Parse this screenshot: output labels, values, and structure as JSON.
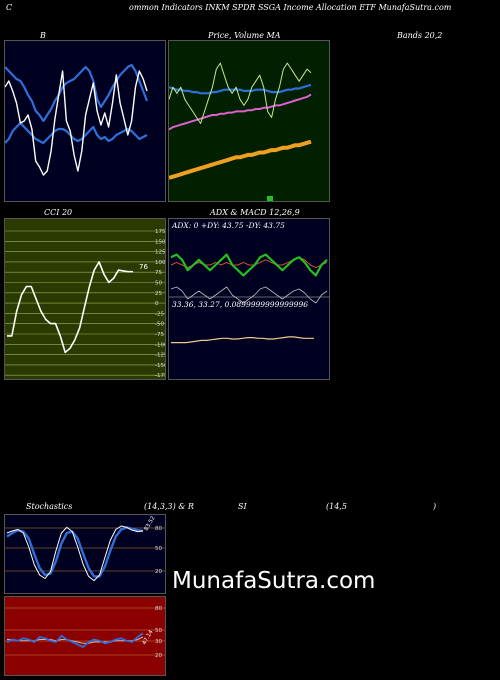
{
  "header": {
    "title": "(Common Indicators INKM SPDR SSGA Income Allocation ETF MunafaSutra.com",
    "c_letter": "C",
    "title_rest": "ommon  Indicators INKM SPDR SSGA Income  Allocation  ETF  MunafaSutra.com"
  },
  "labels": {
    "b": "B",
    "price_ma": "Price,  Volume  MA",
    "bands": "Bands 20,2",
    "cci": "CCI 20",
    "adx_macd": "ADX  & MACD 12,26,9",
    "stochastics": "Stochastics",
    "stoch_params": "(14,3,3) & R",
    "si": "SI",
    "rsi_params": "(14,5",
    "close_paren": ")",
    "watermark": "MunafaSutra.com"
  },
  "colors": {
    "bg": "#000000",
    "panel_dark": "#000020",
    "price_bg": "#002000",
    "cci_bg": "#2b3a00",
    "rsi_bg": "#8b0000",
    "blue": "#2f6fd8",
    "white": "#ffffff",
    "green": "#22c022",
    "orange": "#f0a020",
    "pink": "#e060d0",
    "grid_orange": "#c88a30"
  },
  "chart_data": [
    {
      "type": "line",
      "name": "bollinger-bands",
      "series": [
        {
          "values": [
            62,
            60,
            58,
            56,
            55,
            52,
            48,
            45,
            40,
            38,
            35,
            38,
            41,
            45,
            48,
            52,
            54,
            55,
            56,
            58,
            60,
            62,
            60,
            55,
            46,
            42,
            45,
            48,
            52,
            55,
            58,
            60,
            62,
            63,
            60,
            55,
            50,
            45
          ]
        },
        {
          "values": [
            52,
            55,
            50,
            44,
            34,
            35,
            38,
            31,
            15,
            12,
            8,
            10,
            20,
            36,
            48,
            60,
            35,
            30,
            18,
            10,
            20,
            38,
            46,
            54,
            40,
            33,
            39,
            32,
            44,
            58,
            44,
            36,
            28,
            35,
            52,
            60,
            56,
            50
          ]
        },
        {
          "values": [
            24,
            26,
            30,
            32,
            34,
            32,
            30,
            28,
            26,
            25,
            24,
            26,
            28,
            30,
            31,
            31,
            30,
            28,
            26,
            25,
            26,
            28,
            30,
            32,
            28,
            26,
            27,
            25,
            26,
            28,
            29,
            30,
            31,
            30,
            28,
            26,
            27,
            28
          ]
        }
      ]
    },
    {
      "type": "line",
      "name": "price-volume-ma",
      "series": [
        {
          "values": [
            11.2,
            11.3,
            11.25,
            11.3,
            11.2,
            11.15,
            11.1,
            11.05,
            11.0,
            11.1,
            11.2,
            11.3,
            11.45,
            11.5,
            11.4,
            11.3,
            11.25,
            11.3,
            11.2,
            11.15,
            11.2,
            11.3,
            11.35,
            11.4,
            11.3,
            11.1,
            11.05,
            11.2,
            11.3,
            11.45,
            11.5,
            11.45,
            11.4,
            11.35,
            11.4,
            11.45,
            11.42
          ]
        },
        {
          "values": [
            11.3,
            11.29,
            11.28,
            11.28,
            11.27,
            11.27,
            11.26,
            11.26,
            11.25,
            11.25,
            11.25,
            11.26,
            11.26,
            11.27,
            11.28,
            11.28,
            11.28,
            11.28,
            11.28,
            11.27,
            11.27,
            11.27,
            11.28,
            11.28,
            11.28,
            11.27,
            11.26,
            11.26,
            11.26,
            11.27,
            11.28,
            11.28,
            11.29,
            11.29,
            11.3,
            11.31,
            11.32
          ]
        },
        {
          "values": [
            10.95,
            10.97,
            10.98,
            10.99,
            11.0,
            11.01,
            11.02,
            11.03,
            11.04,
            11.05,
            11.06,
            11.07,
            11.07,
            11.08,
            11.08,
            11.09,
            11.09,
            11.1,
            11.1,
            11.1,
            11.11,
            11.11,
            11.12,
            11.12,
            11.13,
            11.13,
            11.14,
            11.15,
            11.15,
            11.16,
            11.17,
            11.18,
            11.19,
            11.2,
            11.21,
            11.22,
            11.24
          ]
        },
        {
          "values": [
            10.55,
            10.56,
            10.57,
            10.58,
            10.59,
            10.6,
            10.61,
            10.62,
            10.63,
            10.64,
            10.65,
            10.66,
            10.67,
            10.68,
            10.69,
            10.7,
            10.71,
            10.72,
            10.72,
            10.73,
            10.74,
            10.74,
            10.75,
            10.76,
            10.76,
            10.77,
            10.78,
            10.78,
            10.79,
            10.8,
            10.8,
            10.81,
            10.82,
            10.82,
            10.83,
            10.84,
            10.85
          ]
        }
      ]
    },
    {
      "type": "line",
      "name": "cci",
      "ylim": [
        -175,
        175
      ],
      "yticks": [
        "175",
        "150",
        "125",
        "100",
        "75",
        "50",
        "25",
        "0",
        "-25",
        "-50",
        "-75",
        "-100",
        "-125",
        "-150",
        "-175"
      ],
      "last_value": "76",
      "series": [
        {
          "values": [
            -80,
            -80,
            -20,
            20,
            40,
            40,
            10,
            -20,
            -40,
            -50,
            -50,
            -80,
            -120,
            -110,
            -90,
            -60,
            -10,
            40,
            80,
            100,
            70,
            50,
            60,
            80,
            78,
            76,
            76
          ]
        }
      ]
    },
    {
      "type": "line",
      "name": "adx-macd",
      "adx_text": "ADX: 0   +DY: 43.75  -DY: 43.75",
      "macd_text": "33.36,  33.27,  0.0899999999999996",
      "series": [
        {
          "values": [
            43,
            44,
            42,
            38,
            40,
            42,
            40,
            38,
            40,
            42,
            44,
            40,
            38,
            36,
            38,
            40,
            43,
            44,
            42,
            40,
            38,
            40,
            42,
            43,
            41,
            38,
            36,
            40,
            42
          ]
        },
        {
          "values": [
            40,
            41,
            40,
            39,
            40,
            41,
            40,
            40,
            41,
            40,
            41,
            40,
            40,
            41,
            40,
            40,
            41,
            42,
            41,
            40,
            40,
            41,
            42,
            43,
            42,
            40,
            39,
            40,
            41
          ]
        },
        {
          "values": [
            33.3,
            33.3,
            33.3,
            33.3,
            33.31,
            33.32,
            33.33,
            33.33,
            33.34,
            33.35,
            33.36,
            33.36,
            33.35,
            33.35,
            33.36,
            33.37,
            33.37,
            33.36,
            33.36,
            33.35,
            33.35,
            33.36,
            33.37,
            33.38,
            33.38,
            33.37,
            33.36,
            33.36,
            33.36
          ]
        }
      ]
    },
    {
      "type": "line",
      "name": "stochastics",
      "ylim": [
        0,
        100
      ],
      "yticks": [
        "80",
        "50",
        "20"
      ],
      "last_value": "83.52",
      "series": [
        {
          "values": [
            80,
            83,
            85,
            80,
            60,
            35,
            20,
            15,
            25,
            55,
            80,
            88,
            82,
            60,
            35,
            18,
            12,
            20,
            45,
            70,
            85,
            90,
            88,
            84,
            82,
            83
          ]
        },
        {
          "values": [
            75,
            80,
            84,
            82,
            72,
            50,
            30,
            20,
            22,
            40,
            65,
            80,
            82,
            72,
            50,
            30,
            18,
            18,
            32,
            55,
            75,
            85,
            88,
            86,
            84,
            83
          ]
        }
      ]
    },
    {
      "type": "line",
      "name": "rsi",
      "ylim": [
        0,
        100
      ],
      "yticks": [
        "80",
        "50",
        "30",
        "20"
      ],
      "last_value": "47.14",
      "series": [
        {
          "values": [
            40,
            42,
            41,
            43,
            42,
            40,
            44,
            43,
            41,
            40,
            45,
            42,
            40,
            38,
            36,
            40,
            42,
            41,
            39,
            40,
            42,
            43,
            41,
            40,
            44,
            47
          ]
        },
        {
          "values": [
            42,
            42,
            41,
            41,
            41,
            41,
            42,
            42,
            42,
            41,
            42,
            42,
            41,
            40,
            39,
            39,
            40,
            40,
            40,
            40,
            41,
            41,
            41,
            41,
            42,
            44
          ]
        }
      ]
    }
  ]
}
